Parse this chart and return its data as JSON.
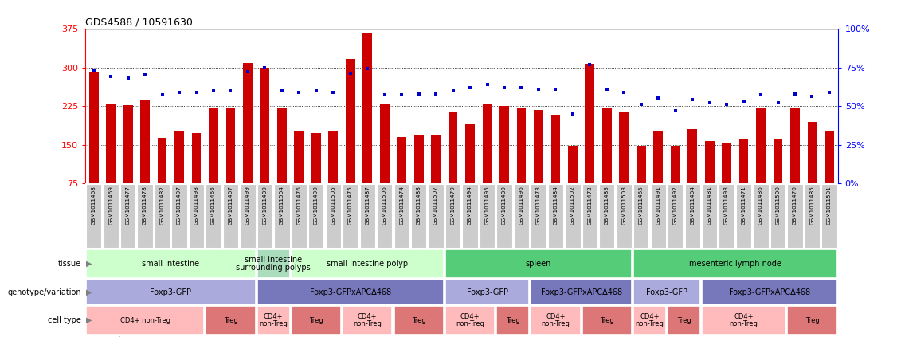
{
  "title": "GDS4588 / 10591630",
  "samples": [
    "GSM1011468",
    "GSM1011469",
    "GSM1011477",
    "GSM1011478",
    "GSM1011482",
    "GSM1011497",
    "GSM1011498",
    "GSM1011466",
    "GSM1011467",
    "GSM1011499",
    "GSM1011489",
    "GSM1011504",
    "GSM1011476",
    "GSM1011490",
    "GSM1011505",
    "GSM1011475",
    "GSM1011487",
    "GSM1011506",
    "GSM1011474",
    "GSM1011488",
    "GSM1011507",
    "GSM1011479",
    "GSM1011494",
    "GSM1011495",
    "GSM1011480",
    "GSM1011496",
    "GSM1011473",
    "GSM1011484",
    "GSM1011502",
    "GSM1011472",
    "GSM1011483",
    "GSM1011503",
    "GSM1011465",
    "GSM1011491",
    "GSM1011492",
    "GSM1011464",
    "GSM1011481",
    "GSM1011493",
    "GSM1011471",
    "GSM1011486",
    "GSM1011500",
    "GSM1011470",
    "GSM1011485",
    "GSM1011501"
  ],
  "counts": [
    292,
    228,
    226,
    237,
    163,
    178,
    172,
    220,
    221,
    308,
    300,
    222,
    175,
    172,
    175,
    316,
    365,
    230,
    165,
    170,
    169,
    213,
    190,
    228,
    225,
    220,
    218,
    208,
    148,
    307,
    220,
    214,
    148,
    175,
    148,
    180,
    157,
    152,
    160,
    222,
    160,
    220,
    195,
    175
  ],
  "percentiles": [
    73,
    69,
    68,
    70,
    57,
    59,
    59,
    60,
    60,
    72,
    75,
    60,
    59,
    60,
    59,
    71,
    74,
    57,
    57,
    58,
    58,
    60,
    62,
    64,
    62,
    62,
    61,
    61,
    45,
    77,
    61,
    59,
    51,
    55,
    47,
    54,
    52,
    51,
    53,
    57,
    52,
    58,
    56,
    59
  ],
  "bar_color": "#CC0000",
  "dot_color": "#0000CC",
  "ylim_left": [
    75,
    375
  ],
  "ylim_right": [
    0,
    100
  ],
  "yticks_left": [
    75,
    150,
    225,
    300,
    375
  ],
  "yticks_right": [
    0,
    25,
    50,
    75,
    100
  ],
  "grid_values": [
    150,
    225,
    300
  ],
  "tissue_groups": [
    {
      "label": "small intestine",
      "start": 0,
      "end": 9,
      "color": "#CCFFCC"
    },
    {
      "label": "small intestine\nsurrounding polyps",
      "start": 10,
      "end": 11,
      "color": "#AADDBB"
    },
    {
      "label": "small intestine polyp",
      "start": 12,
      "end": 20,
      "color": "#CCFFCC"
    },
    {
      "label": "spleen",
      "start": 21,
      "end": 31,
      "color": "#55CC77"
    },
    {
      "label": "mesenteric lymph node",
      "start": 32,
      "end": 43,
      "color": "#55CC77"
    }
  ],
  "genotype_groups": [
    {
      "label": "Foxp3-GFP",
      "start": 0,
      "end": 9,
      "color": "#AAAADD"
    },
    {
      "label": "Foxp3-GFPxAPCΔ468",
      "start": 10,
      "end": 20,
      "color": "#7777BB"
    },
    {
      "label": "Foxp3-GFP",
      "start": 21,
      "end": 25,
      "color": "#AAAADD"
    },
    {
      "label": "Foxp3-GFPxAPCΔ468",
      "start": 26,
      "end": 31,
      "color": "#7777BB"
    },
    {
      "label": "Foxp3-GFP",
      "start": 32,
      "end": 35,
      "color": "#AAAADD"
    },
    {
      "label": "Foxp3-GFPxAPCΔ468",
      "start": 36,
      "end": 43,
      "color": "#7777BB"
    }
  ],
  "celltype_groups": [
    {
      "label": "CD4+ non-Treg",
      "start": 0,
      "end": 6,
      "color": "#FFBBBB"
    },
    {
      "label": "Treg",
      "start": 7,
      "end": 9,
      "color": "#DD7777"
    },
    {
      "label": "CD4+\nnon-Treg",
      "start": 10,
      "end": 11,
      "color": "#FFBBBB"
    },
    {
      "label": "Treg",
      "start": 12,
      "end": 14,
      "color": "#DD7777"
    },
    {
      "label": "CD4+\nnon-Treg",
      "start": 15,
      "end": 17,
      "color": "#FFBBBB"
    },
    {
      "label": "Treg",
      "start": 18,
      "end": 20,
      "color": "#DD7777"
    },
    {
      "label": "CD4+\nnon-Treg",
      "start": 21,
      "end": 23,
      "color": "#FFBBBB"
    },
    {
      "label": "Treg",
      "start": 24,
      "end": 25,
      "color": "#DD7777"
    },
    {
      "label": "CD4+\nnon-Treg",
      "start": 26,
      "end": 28,
      "color": "#FFBBBB"
    },
    {
      "label": "Treg",
      "start": 29,
      "end": 31,
      "color": "#DD7777"
    },
    {
      "label": "CD4+\nnon-Treg",
      "start": 32,
      "end": 33,
      "color": "#FFBBBB"
    },
    {
      "label": "Treg",
      "start": 34,
      "end": 35,
      "color": "#DD7777"
    },
    {
      "label": "CD4+\nnon-Treg",
      "start": 36,
      "end": 40,
      "color": "#FFBBBB"
    },
    {
      "label": "Treg",
      "start": 41,
      "end": 43,
      "color": "#DD7777"
    }
  ],
  "row_labels": [
    "tissue",
    "genotype/variation",
    "cell type"
  ],
  "tick_bg_color": "#CCCCCC",
  "background_color": "#FFFFFF"
}
